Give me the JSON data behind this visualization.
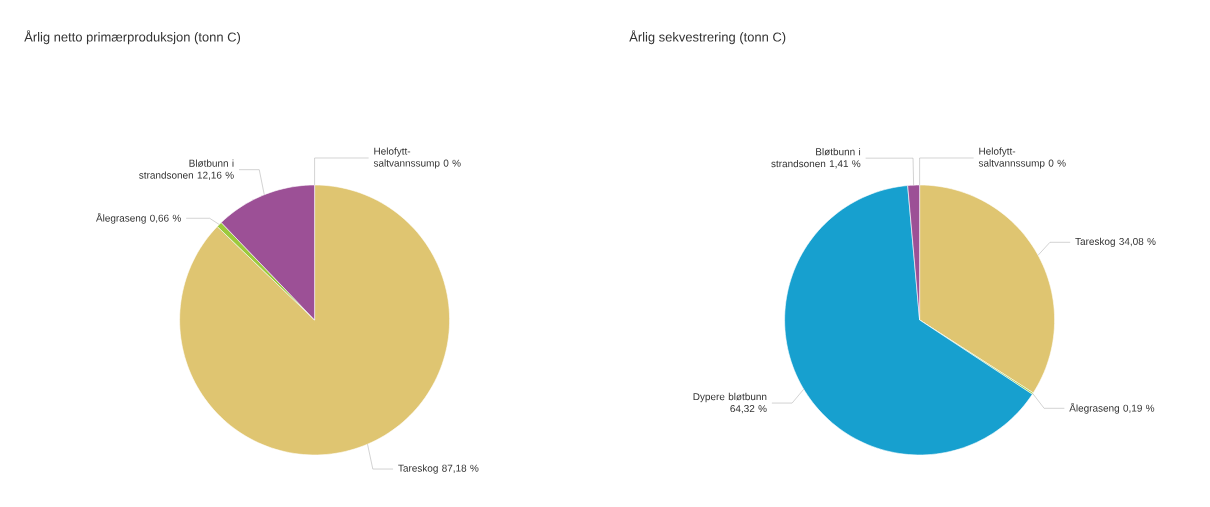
{
  "chart_data": [
    {
      "type": "pie",
      "title": "Årlig netto primærproduksjon (tonn C)",
      "categories": [
        "Tareskog",
        "Ålegraseng",
        "Bløtbunn i strandsonen",
        "Helofytt-saltvannssump"
      ],
      "values": [
        87.18,
        0.66,
        12.16,
        0
      ],
      "value_labels": [
        "87,18 %",
        "0,66 %",
        "12,16 %",
        "0 %"
      ],
      "colors": [
        "#dfc571",
        "#9cc93c",
        "#9c5096",
        "#e8884a"
      ]
    },
    {
      "type": "pie",
      "title": "Årlig sekvestrering (tonn C)",
      "categories": [
        "Tareskog",
        "Ålegraseng",
        "Dypere bløtbunn",
        "Bløtbunn i strandsonen",
        "Helofytt-saltvannssump"
      ],
      "values": [
        34.08,
        0.19,
        64.32,
        1.41,
        0
      ],
      "value_labels": [
        "34,08 %",
        "0,19 %",
        "64,32 %",
        "1,41 %",
        "0 %"
      ],
      "colors": [
        "#dfc571",
        "#9cc93c",
        "#17a0cf",
        "#9c5096",
        "#e8884a"
      ]
    }
  ]
}
